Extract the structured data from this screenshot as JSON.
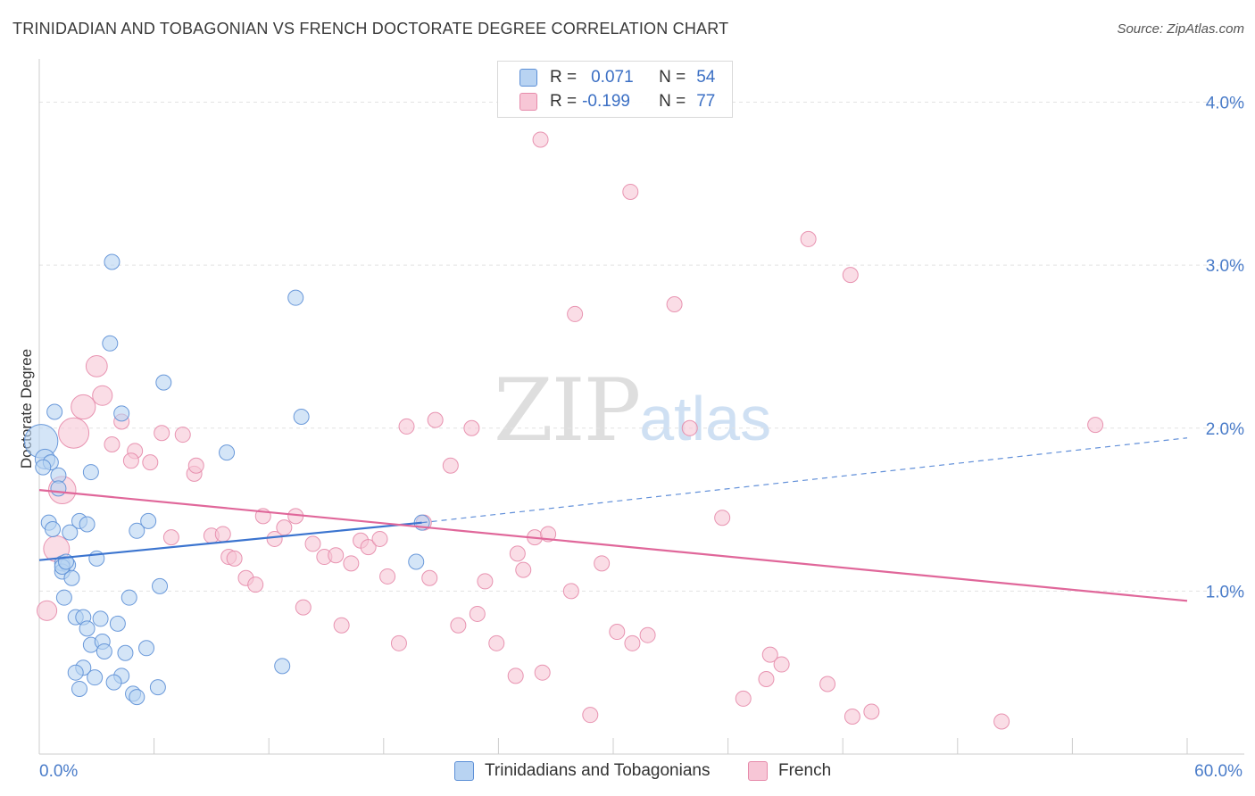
{
  "title": "TRINIDADIAN AND TOBAGONIAN VS FRENCH DOCTORATE DEGREE CORRELATION CHART",
  "source": "Source: ZipAtlas.com",
  "watermark": {
    "zip": "ZIP",
    "atlas": "atlas"
  },
  "legend": {
    "blue": {
      "r_label": "R =",
      "r_value": "0.071",
      "n_label": "N =",
      "n_value": "54"
    },
    "pink": {
      "r_label": "R =",
      "r_value": "-0.199",
      "n_label": "N =",
      "n_value": "77"
    }
  },
  "bottom_legend": {
    "blue": "Trinidadians and Tobagonians",
    "pink": "French"
  },
  "colors": {
    "blue_fill": "#b8d3f2",
    "blue_stroke": "#5c8fd6",
    "blue_line": "#3b74cf",
    "pink_fill": "#f7c6d6",
    "pink_stroke": "#e68aaa",
    "pink_line": "#e0679a",
    "tick_text": "#4a7cc9",
    "grid": "#e3e3e3"
  },
  "chart_data": {
    "type": "scatter",
    "title": "TRINIDADIAN AND TOBAGONIAN VS FRENCH DOCTORATE DEGREE CORRELATION CHART",
    "xlabel": "",
    "ylabel": "Doctorate Degree",
    "xlim": [
      0,
      60
    ],
    "ylim": [
      0,
      4.2
    ],
    "x_tick_labels": [
      "0.0%",
      "60.0%"
    ],
    "y_ticks": [
      1.0,
      2.0,
      3.0,
      4.0
    ],
    "y_tick_labels": [
      "1.0%",
      "2.0%",
      "3.0%",
      "4.0%"
    ],
    "grid": "horizontal dashed",
    "legend_position": "top-center",
    "series": [
      {
        "name": "Trinidadians and Tobagonians",
        "color": "#5c8fd6",
        "points": [
          [
            0.1,
            1.92,
            2.2
          ],
          [
            0.3,
            1.81,
            1.3
          ],
          [
            0.6,
            1.79,
            1.0
          ],
          [
            0.2,
            1.76,
            1.0
          ],
          [
            0.8,
            2.1,
            1.0
          ],
          [
            1.0,
            1.71,
            1.0
          ],
          [
            1.0,
            1.63,
            1.0
          ],
          [
            2.7,
            1.73,
            1.0
          ],
          [
            3.8,
            3.02,
            1.0
          ],
          [
            3.7,
            2.52,
            1.0
          ],
          [
            4.3,
            2.09,
            1.0
          ],
          [
            6.5,
            2.28,
            1.0
          ],
          [
            9.8,
            1.85,
            1.0
          ],
          [
            13.4,
            2.8,
            1.0
          ],
          [
            13.7,
            2.07,
            1.0
          ],
          [
            0.5,
            1.42,
            1.0
          ],
          [
            0.7,
            1.38,
            1.0
          ],
          [
            1.6,
            1.36,
            1.0
          ],
          [
            2.1,
            1.43,
            1.0
          ],
          [
            2.5,
            1.41,
            1.0
          ],
          [
            5.1,
            1.37,
            1.0
          ],
          [
            5.7,
            1.43,
            1.0
          ],
          [
            1.2,
            1.17,
            1.0
          ],
          [
            1.5,
            1.16,
            1.0
          ],
          [
            3.0,
            1.2,
            1.0
          ],
          [
            1.2,
            1.12,
            1.0
          ],
          [
            1.7,
            1.08,
            1.0
          ],
          [
            6.3,
            1.03,
            1.0
          ],
          [
            1.3,
            0.96,
            1.0
          ],
          [
            4.7,
            0.96,
            1.0
          ],
          [
            1.9,
            0.84,
            1.0
          ],
          [
            2.3,
            0.84,
            1.0
          ],
          [
            3.2,
            0.83,
            1.0
          ],
          [
            4.1,
            0.8,
            1.0
          ],
          [
            2.5,
            0.77,
            1.0
          ],
          [
            2.7,
            0.67,
            1.0
          ],
          [
            3.3,
            0.69,
            1.0
          ],
          [
            3.4,
            0.63,
            1.0
          ],
          [
            4.5,
            0.62,
            1.0
          ],
          [
            5.6,
            0.65,
            1.0
          ],
          [
            2.3,
            0.53,
            1.0
          ],
          [
            1.9,
            0.5,
            1.0
          ],
          [
            2.9,
            0.47,
            1.0
          ],
          [
            4.3,
            0.48,
            1.0
          ],
          [
            3.9,
            0.44,
            1.0
          ],
          [
            2.1,
            0.4,
            1.0
          ],
          [
            6.2,
            0.41,
            1.0
          ],
          [
            4.9,
            0.37,
            1.0
          ],
          [
            5.1,
            0.35,
            1.0
          ],
          [
            12.7,
            0.54,
            1.0
          ],
          [
            19.7,
            1.18,
            1.0
          ],
          [
            1.2,
            1.15,
            1.0
          ],
          [
            20.0,
            1.42,
            1.0
          ],
          [
            1.4,
            1.18,
            1.0
          ]
        ]
      },
      {
        "name": "French",
        "color": "#e68aaa",
        "points": [
          [
            3.0,
            2.38,
            1.4
          ],
          [
            3.3,
            2.2,
            1.3
          ],
          [
            2.3,
            2.13,
            1.6
          ],
          [
            1.8,
            1.97,
            2.0
          ],
          [
            1.2,
            1.62,
            1.8
          ],
          [
            0.9,
            1.26,
            1.7
          ],
          [
            0.4,
            0.88,
            1.3
          ],
          [
            4.3,
            2.04,
            1.0
          ],
          [
            3.8,
            1.9,
            1.0
          ],
          [
            5.0,
            1.86,
            1.0
          ],
          [
            4.8,
            1.8,
            1.0
          ],
          [
            5.8,
            1.79,
            1.0
          ],
          [
            6.4,
            1.97,
            1.0
          ],
          [
            7.5,
            1.96,
            1.0
          ],
          [
            8.1,
            1.72,
            1.0
          ],
          [
            8.2,
            1.77,
            1.0
          ],
          [
            6.9,
            1.33,
            1.0
          ],
          [
            9.0,
            1.34,
            1.0
          ],
          [
            9.6,
            1.35,
            1.0
          ],
          [
            9.9,
            1.21,
            1.0
          ],
          [
            10.2,
            1.2,
            1.0
          ],
          [
            10.8,
            1.08,
            1.0
          ],
          [
            11.3,
            1.04,
            1.0
          ],
          [
            11.7,
            1.46,
            1.0
          ],
          [
            12.3,
            1.32,
            1.0
          ],
          [
            12.8,
            1.39,
            1.0
          ],
          [
            13.4,
            1.46,
            1.0
          ],
          [
            14.3,
            1.29,
            1.0
          ],
          [
            14.9,
            1.21,
            1.0
          ],
          [
            15.5,
            1.22,
            1.0
          ],
          [
            16.3,
            1.17,
            1.0
          ],
          [
            16.8,
            1.31,
            1.0
          ],
          [
            17.2,
            1.27,
            1.0
          ],
          [
            17.8,
            1.32,
            1.0
          ],
          [
            18.2,
            1.09,
            1.0
          ],
          [
            19.2,
            2.01,
            1.0
          ],
          [
            20.1,
            1.42,
            1.0
          ],
          [
            20.4,
            1.08,
            1.0
          ],
          [
            20.7,
            2.05,
            1.0
          ],
          [
            21.5,
            1.77,
            1.0
          ],
          [
            22.6,
            2.0,
            1.0
          ],
          [
            23.3,
            1.06,
            1.0
          ],
          [
            25.0,
            1.23,
            1.0
          ],
          [
            25.3,
            1.13,
            1.0
          ],
          [
            25.9,
            1.33,
            1.0
          ],
          [
            26.6,
            1.35,
            1.0
          ],
          [
            27.8,
            1.0,
            1.0
          ],
          [
            28.0,
            2.7,
            1.0
          ],
          [
            29.4,
            1.17,
            1.0
          ],
          [
            30.9,
            3.45,
            1.0
          ],
          [
            31.0,
            0.68,
            1.0
          ],
          [
            31.8,
            0.73,
            1.0
          ],
          [
            33.2,
            2.76,
            1.0
          ],
          [
            34.0,
            2.0,
            1.0
          ],
          [
            35.7,
            1.45,
            1.0
          ],
          [
            40.2,
            3.16,
            1.0
          ],
          [
            42.4,
            2.94,
            1.0
          ],
          [
            55.2,
            2.02,
            1.0
          ],
          [
            15.8,
            0.79,
            1.0
          ],
          [
            13.8,
            0.9,
            1.0
          ],
          [
            18.8,
            0.68,
            1.0
          ],
          [
            21.9,
            0.79,
            1.0
          ],
          [
            22.9,
            0.86,
            1.0
          ],
          [
            23.9,
            0.68,
            1.0
          ],
          [
            24.9,
            0.48,
            1.0
          ],
          [
            26.3,
            0.5,
            1.0
          ],
          [
            30.2,
            0.75,
            1.0
          ],
          [
            28.8,
            0.24,
            1.0
          ],
          [
            36.8,
            0.34,
            1.0
          ],
          [
            38.0,
            0.46,
            1.0
          ],
          [
            38.2,
            0.61,
            1.0
          ],
          [
            38.8,
            0.55,
            1.0
          ],
          [
            41.2,
            0.43,
            1.0
          ],
          [
            42.5,
            0.23,
            1.0
          ],
          [
            43.5,
            0.26,
            1.0
          ],
          [
            50.3,
            0.2,
            1.0
          ],
          [
            26.2,
            3.77,
            1.0
          ]
        ]
      }
    ],
    "trend_lines": [
      {
        "series": "Trinidadians and Tobagonians",
        "solid": [
          [
            0,
            1.19
          ],
          [
            20,
            1.42
          ]
        ],
        "dashed": [
          [
            20,
            1.42
          ],
          [
            60,
            1.94
          ]
        ]
      },
      {
        "series": "French",
        "solid": [
          [
            0,
            1.62
          ],
          [
            60,
            0.94
          ]
        ]
      }
    ]
  }
}
